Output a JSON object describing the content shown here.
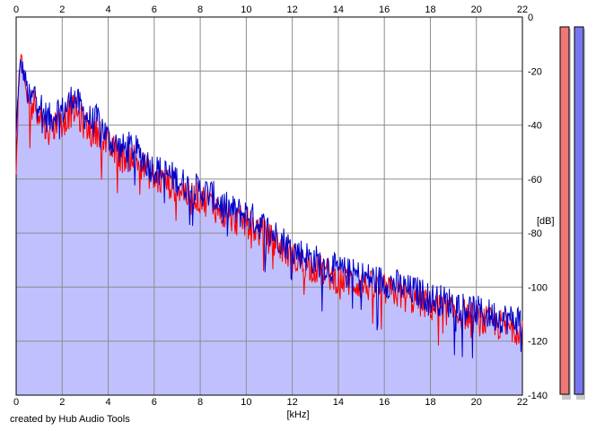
{
  "chart_data": {
    "type": "area",
    "title": "",
    "xlabel": "[kHz]",
    "ylabel": "[dB]",
    "xlim": [
      0,
      22
    ],
    "ylim": [
      -140,
      0
    ],
    "x_ticks": [
      "0",
      "2",
      "4",
      "6",
      "8",
      "10",
      "12",
      "14",
      "16",
      "18",
      "20",
      "22"
    ],
    "y_ticks": [
      "0",
      "-20",
      "-40",
      "-60",
      "-80",
      "-100",
      "-120",
      "-140"
    ],
    "grid": true,
    "legend": "none",
    "series": [
      {
        "color": "#0000cc",
        "fill": "#c0c0ff",
        "x": [
          0,
          0.1,
          0.2,
          0.3,
          0.4,
          0.6,
          0.8,
          1.0,
          1.2,
          1.5,
          1.8,
          2.0,
          2.2,
          2.5,
          2.8,
          3.0,
          3.3,
          3.6,
          4.0,
          4.3,
          4.6,
          5.0,
          5.4,
          5.8,
          6.0,
          6.5,
          7.0,
          7.5,
          8.0,
          8.5,
          9.0,
          9.5,
          10.0,
          10.5,
          11.0,
          11.5,
          12.0,
          12.5,
          13.0,
          13.5,
          14.0,
          14.5,
          15.0,
          15.5,
          16.0,
          16.5,
          17.0,
          17.5,
          18.0,
          18.5,
          19.0,
          19.5,
          20.0,
          20.5,
          21.0,
          21.5,
          22.0
        ],
        "values": [
          -45,
          -25,
          -17,
          -20,
          -23,
          -32,
          -28,
          -30,
          -36,
          -38,
          -34,
          -35,
          -33,
          -29,
          -34,
          -36,
          -39,
          -38,
          -45,
          -47,
          -49,
          -48,
          -51,
          -55,
          -56,
          -58,
          -60,
          -63,
          -64,
          -66,
          -70,
          -72,
          -73,
          -76,
          -79,
          -82,
          -86,
          -88,
          -90,
          -92,
          -94,
          -95,
          -96,
          -97,
          -98,
          -99,
          -101,
          -102,
          -104,
          -105,
          -106,
          -107,
          -109,
          -110,
          -111,
          -112,
          -112
        ]
      },
      {
        "color": "#ff0000",
        "x": [
          0,
          0.1,
          0.2,
          0.3,
          0.4,
          0.6,
          0.8,
          1.0,
          1.2,
          1.5,
          1.8,
          2.0,
          2.2,
          2.5,
          2.8,
          3.0,
          3.3,
          3.6,
          4.0,
          4.3,
          4.6,
          5.0,
          5.4,
          5.8,
          6.0,
          6.5,
          7.0,
          7.5,
          8.0,
          8.5,
          9.0,
          9.5,
          10.0,
          10.5,
          11.0,
          11.5,
          12.0,
          12.5,
          13.0,
          13.5,
          14.0,
          14.5,
          15.0,
          15.5,
          16.0,
          16.5,
          17.0,
          17.5,
          18.0,
          18.5,
          19.0,
          19.5,
          20.0,
          20.5,
          21.0,
          21.5,
          22.0
        ],
        "values": [
          -60,
          -28,
          -15,
          -22,
          -26,
          -35,
          -32,
          -35,
          -40,
          -42,
          -38,
          -39,
          -37,
          -34,
          -38,
          -40,
          -43,
          -42,
          -48,
          -50,
          -52,
          -51,
          -54,
          -58,
          -60,
          -61,
          -63,
          -66,
          -67,
          -69,
          -73,
          -75,
          -76,
          -79,
          -82,
          -85,
          -89,
          -91,
          -93,
          -95,
          -97,
          -98,
          -99,
          -100,
          -101,
          -102,
          -104,
          -105,
          -107,
          -108,
          -109,
          -110,
          -112,
          -113,
          -114,
          -115,
          -115
        ]
      }
    ],
    "side_meters": [
      {
        "color": "#ee7777",
        "level_db": -4
      },
      {
        "color": "#7777ee",
        "level_db": -3
      }
    ]
  },
  "footer": {
    "credit": "created by Hub Audio Tools"
  }
}
